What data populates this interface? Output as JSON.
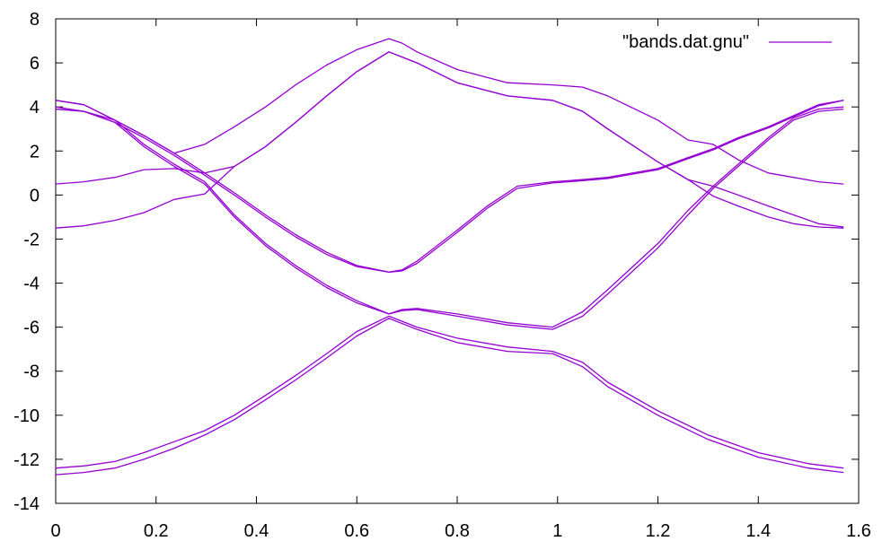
{
  "chart_data": {
    "type": "line",
    "title": "",
    "xlabel": "",
    "ylabel": "",
    "xlim": [
      0,
      1.6
    ],
    "ylim": [
      -14,
      8
    ],
    "xticks": [
      "0",
      "0.2",
      "0.4",
      "0.6",
      "0.8",
      "1",
      "1.2",
      "1.4",
      "1.6"
    ],
    "yticks": [
      "8",
      "6",
      "4",
      "2",
      "0",
      "-2",
      "-4",
      "-6",
      "-8",
      "-10",
      "-12",
      "-14"
    ],
    "xtick_values": [
      0,
      0.2,
      0.4,
      0.6,
      0.8,
      1.0,
      1.2,
      1.4,
      1.6
    ],
    "ytick_values": [
      8,
      6,
      4,
      2,
      0,
      -2,
      -4,
      -6,
      -8,
      -10,
      -12,
      -14
    ],
    "grid": false,
    "legend": {
      "position": "top-right",
      "entries": [
        "\"bands.dat.gnu\""
      ]
    },
    "line_color": "#9400d3",
    "series": [
      {
        "values": [
          [
            0,
            -12.7
          ],
          [
            0.056,
            -12.6
          ],
          [
            0.118,
            -12.4
          ],
          [
            0.176,
            -12.0
          ],
          [
            0.236,
            -11.5
          ],
          [
            0.297,
            -10.9
          ],
          [
            0.356,
            -10.2
          ],
          [
            0.418,
            -9.3
          ],
          [
            0.478,
            -8.4
          ],
          [
            0.54,
            -7.4
          ],
          [
            0.6,
            -6.4
          ],
          [
            0.664,
            -5.6
          ],
          [
            0.72,
            -6.1
          ],
          [
            0.8,
            -6.7
          ],
          [
            0.9,
            -7.1
          ],
          [
            0.99,
            -7.2
          ],
          [
            1.05,
            -7.8
          ],
          [
            1.1,
            -8.7
          ],
          [
            1.2,
            -10.0
          ],
          [
            1.3,
            -11.1
          ],
          [
            1.4,
            -11.9
          ],
          [
            1.5,
            -12.4
          ],
          [
            1.57,
            -12.6
          ]
        ]
      },
      {
        "values": [
          [
            0,
            -12.4
          ],
          [
            0.056,
            -12.3
          ],
          [
            0.118,
            -12.1
          ],
          [
            0.176,
            -11.7
          ],
          [
            0.236,
            -11.2
          ],
          [
            0.297,
            -10.7
          ],
          [
            0.356,
            -10.0
          ],
          [
            0.418,
            -9.1
          ],
          [
            0.478,
            -8.2
          ],
          [
            0.54,
            -7.2
          ],
          [
            0.6,
            -6.2
          ],
          [
            0.664,
            -5.5
          ],
          [
            0.72,
            -6.0
          ],
          [
            0.8,
            -6.5
          ],
          [
            0.9,
            -6.9
          ],
          [
            0.99,
            -7.1
          ],
          [
            1.05,
            -7.6
          ],
          [
            1.1,
            -8.5
          ],
          [
            1.2,
            -9.8
          ],
          [
            1.3,
            -10.9
          ],
          [
            1.4,
            -11.7
          ],
          [
            1.5,
            -12.2
          ],
          [
            1.57,
            -12.4
          ]
        ]
      },
      {
        "values": [
          [
            0,
            4.3
          ],
          [
            0.056,
            4.1
          ],
          [
            0.118,
            3.4
          ],
          [
            0.176,
            2.3
          ],
          [
            0.236,
            1.4
          ],
          [
            0.297,
            0.6
          ],
          [
            0.356,
            -0.9
          ],
          [
            0.418,
            -2.2
          ],
          [
            0.478,
            -3.2
          ],
          [
            0.54,
            -4.1
          ],
          [
            0.6,
            -4.8
          ],
          [
            0.664,
            -5.4
          ],
          [
            0.69,
            -5.25
          ],
          [
            0.72,
            -5.2
          ],
          [
            0.8,
            -5.5
          ],
          [
            0.9,
            -5.9
          ],
          [
            0.99,
            -6.1
          ],
          [
            1.05,
            -5.5
          ],
          [
            1.1,
            -4.5
          ],
          [
            1.2,
            -2.4
          ],
          [
            1.26,
            -0.9
          ],
          [
            1.31,
            0.3
          ],
          [
            1.36,
            1.3
          ],
          [
            1.42,
            2.5
          ],
          [
            1.47,
            3.4
          ],
          [
            1.52,
            3.8
          ],
          [
            1.57,
            3.9
          ]
        ]
      },
      {
        "values": [
          [
            0,
            3.9
          ],
          [
            0.056,
            3.8
          ],
          [
            0.118,
            3.3
          ],
          [
            0.176,
            2.2
          ],
          [
            0.236,
            1.3
          ],
          [
            0.297,
            0.5
          ],
          [
            0.356,
            -1.0
          ],
          [
            0.418,
            -2.3
          ],
          [
            0.478,
            -3.3
          ],
          [
            0.54,
            -4.2
          ],
          [
            0.6,
            -4.9
          ],
          [
            0.664,
            -5.4
          ],
          [
            0.69,
            -5.2
          ],
          [
            0.72,
            -5.15
          ],
          [
            0.8,
            -5.4
          ],
          [
            0.9,
            -5.8
          ],
          [
            0.99,
            -6.0
          ],
          [
            1.05,
            -5.3
          ],
          [
            1.1,
            -4.3
          ],
          [
            1.2,
            -2.2
          ],
          [
            1.26,
            -0.7
          ],
          [
            1.31,
            0.4
          ],
          [
            1.36,
            1.4
          ],
          [
            1.42,
            2.6
          ],
          [
            1.47,
            3.5
          ],
          [
            1.52,
            3.9
          ],
          [
            1.57,
            4.0
          ]
        ]
      },
      {
        "values": [
          [
            0,
            4.0
          ],
          [
            0.056,
            3.8
          ],
          [
            0.118,
            3.4
          ],
          [
            0.176,
            2.7
          ],
          [
            0.236,
            1.9
          ],
          [
            0.297,
            1.0
          ],
          [
            0.356,
            0.1
          ],
          [
            0.418,
            -0.9
          ],
          [
            0.478,
            -1.8
          ],
          [
            0.54,
            -2.6
          ],
          [
            0.6,
            -3.2
          ],
          [
            0.664,
            -3.5
          ],
          [
            0.69,
            -3.4
          ],
          [
            0.72,
            -3.0
          ],
          [
            0.8,
            -1.6
          ],
          [
            0.86,
            -0.5
          ],
          [
            0.92,
            0.4
          ],
          [
            0.99,
            0.6
          ],
          [
            1.05,
            0.7
          ],
          [
            1.1,
            0.8
          ],
          [
            1.2,
            1.2
          ],
          [
            1.26,
            1.7
          ],
          [
            1.31,
            2.1
          ],
          [
            1.36,
            2.6
          ],
          [
            1.42,
            3.1
          ],
          [
            1.47,
            3.6
          ],
          [
            1.52,
            4.1
          ],
          [
            1.57,
            4.3
          ]
        ]
      },
      {
        "values": [
          [
            0,
            3.9
          ],
          [
            0.056,
            3.8
          ],
          [
            0.118,
            3.3
          ],
          [
            0.176,
            2.6
          ],
          [
            0.236,
            1.8
          ],
          [
            0.297,
            0.9
          ],
          [
            0.356,
            0.0
          ],
          [
            0.418,
            -1.0
          ],
          [
            0.478,
            -1.9
          ],
          [
            0.54,
            -2.7
          ],
          [
            0.6,
            -3.25
          ],
          [
            0.664,
            -3.5
          ],
          [
            0.69,
            -3.45
          ],
          [
            0.72,
            -3.1
          ],
          [
            0.8,
            -1.7
          ],
          [
            0.86,
            -0.6
          ],
          [
            0.92,
            0.3
          ],
          [
            0.99,
            0.55
          ],
          [
            1.05,
            0.65
          ],
          [
            1.1,
            0.75
          ],
          [
            1.2,
            1.15
          ],
          [
            1.26,
            1.65
          ],
          [
            1.31,
            2.05
          ],
          [
            1.36,
            2.55
          ],
          [
            1.42,
            3.05
          ],
          [
            1.47,
            3.55
          ],
          [
            1.52,
            4.05
          ],
          [
            1.57,
            4.3
          ]
        ]
      },
      {
        "values": [
          [
            0,
            0.5
          ],
          [
            0.056,
            0.6
          ],
          [
            0.118,
            0.8
          ],
          [
            0.176,
            1.15
          ],
          [
            0.236,
            1.2
          ],
          [
            0.297,
            1.0
          ],
          [
            0.356,
            1.3
          ],
          [
            0.418,
            2.2
          ],
          [
            0.478,
            3.3
          ],
          [
            0.54,
            4.5
          ],
          [
            0.6,
            5.6
          ],
          [
            0.664,
            6.5
          ],
          [
            0.72,
            6.0
          ],
          [
            0.8,
            5.1
          ],
          [
            0.9,
            4.5
          ],
          [
            0.99,
            4.3
          ],
          [
            1.05,
            3.8
          ],
          [
            1.1,
            3.0
          ],
          [
            1.2,
            1.5
          ],
          [
            1.26,
            0.7
          ],
          [
            1.31,
            0.4
          ],
          [
            1.36,
            0.0
          ],
          [
            1.42,
            -0.5
          ],
          [
            1.47,
            -0.9
          ],
          [
            1.52,
            -1.3
          ],
          [
            1.57,
            -1.45
          ]
        ]
      },
      {
        "values": [
          [
            0,
            -1.5
          ],
          [
            0.056,
            -1.4
          ],
          [
            0.118,
            -1.15
          ],
          [
            0.176,
            -0.8
          ],
          [
            0.236,
            -0.2
          ],
          [
            0.297,
            0.05
          ],
          [
            0.356,
            1.3
          ],
          [
            0.418,
            2.2
          ],
          [
            0.478,
            3.3
          ],
          [
            0.54,
            4.5
          ],
          [
            0.6,
            5.6
          ],
          [
            0.664,
            6.5
          ],
          [
            0.72,
            6.0
          ],
          [
            0.8,
            5.1
          ],
          [
            0.9,
            4.5
          ],
          [
            0.99,
            4.3
          ],
          [
            1.05,
            3.8
          ],
          [
            1.1,
            3.0
          ],
          [
            1.2,
            1.5
          ],
          [
            1.26,
            0.7
          ],
          [
            1.31,
            -0.05
          ],
          [
            1.36,
            -0.5
          ],
          [
            1.42,
            -1.0
          ],
          [
            1.47,
            -1.3
          ],
          [
            1.52,
            -1.45
          ],
          [
            1.57,
            -1.5
          ]
        ]
      },
      {
        "values": [
          [
            0,
            4.3
          ],
          [
            0.056,
            4.1
          ],
          [
            0.118,
            3.4
          ],
          [
            0.176,
            2.7
          ],
          [
            0.236,
            1.9
          ],
          [
            0.297,
            2.3
          ],
          [
            0.356,
            3.1
          ],
          [
            0.418,
            4.0
          ],
          [
            0.478,
            5.0
          ],
          [
            0.54,
            5.9
          ],
          [
            0.6,
            6.6
          ],
          [
            0.664,
            7.1
          ],
          [
            0.69,
            6.9
          ],
          [
            0.72,
            6.5
          ],
          [
            0.8,
            5.7
          ],
          [
            0.9,
            5.1
          ],
          [
            0.99,
            5.0
          ],
          [
            1.05,
            4.9
          ],
          [
            1.1,
            4.5
          ],
          [
            1.2,
            3.4
          ],
          [
            1.26,
            2.5
          ],
          [
            1.31,
            2.3
          ],
          [
            1.36,
            1.6
          ],
          [
            1.42,
            1.0
          ],
          [
            1.47,
            0.8
          ],
          [
            1.52,
            0.6
          ],
          [
            1.57,
            0.5
          ]
        ]
      }
    ]
  }
}
